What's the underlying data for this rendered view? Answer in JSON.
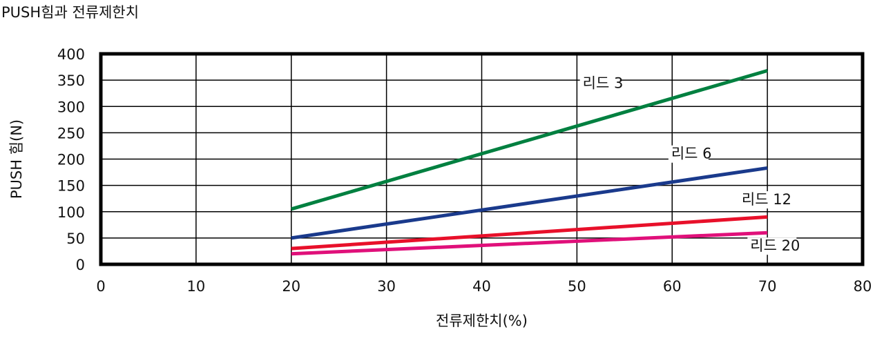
{
  "page_title": "PUSH힘과 전류제한치",
  "chart_data": {
    "type": "line",
    "title": "PUSH힘과 전류제한치",
    "xlabel": "전류제한치(%)",
    "ylabel": "PUSH 힘(N)",
    "xlim": [
      0,
      80
    ],
    "ylim": [
      0,
      400
    ],
    "xticks": [
      0,
      10,
      20,
      30,
      40,
      50,
      60,
      70,
      80
    ],
    "yticks": [
      0,
      50,
      100,
      150,
      200,
      250,
      300,
      350,
      400
    ],
    "grid": true,
    "series": [
      {
        "name": "리드 3",
        "color": "#008040",
        "x": [
          20,
          70
        ],
        "y": [
          105,
          368
        ],
        "label_at": [
          50.6,
          335
        ]
      },
      {
        "name": "리드 6",
        "color": "#1a3a8c",
        "x": [
          20,
          70
        ],
        "y": [
          50,
          183
        ],
        "label_at": [
          59.9,
          201
        ]
      },
      {
        "name": "리드 12",
        "color": "#e8102a",
        "x": [
          20,
          70
        ],
        "y": [
          30,
          90
        ],
        "label_at": [
          67.3,
          114
        ]
      },
      {
        "name": "리드 20",
        "color": "#e0107a",
        "x": [
          20,
          70
        ],
        "y": [
          20,
          60
        ],
        "label_at": [
          68.2,
          26
        ]
      }
    ]
  }
}
